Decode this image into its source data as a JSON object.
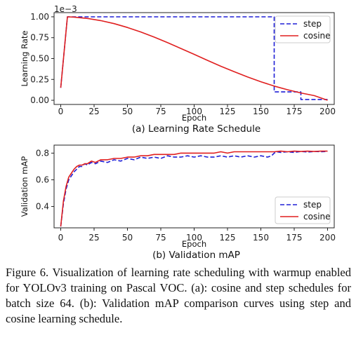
{
  "figure": {
    "caption": "Figure 6. Visualization of learning rate scheduling with warmup enabled for YOLOv3 training on Pascal VOC. (a): cosine and step schedules for batch size 64. (b): Validation mAP comparison curves using step and cosine learning schedule.",
    "colors": {
      "step": "#1f1fd6",
      "cosine": "#e01f1f",
      "axis": "#222222"
    }
  },
  "chart_data": [
    {
      "type": "line",
      "caption": "(a) Learning Rate Schedule",
      "xlabel": "Epoch",
      "ylabel": "Learning Rate",
      "offset_label": "1e−3",
      "xlim": [
        -5,
        205
      ],
      "ylim": [
        -0.05,
        1.05
      ],
      "xticks": [
        "0",
        "25",
        "50",
        "75",
        "100",
        "125",
        "150",
        "175",
        "200"
      ],
      "yticks": [
        "0.00",
        "0.25",
        "0.50",
        "0.75",
        "1.00"
      ],
      "legend_position": "upper-right",
      "series": [
        {
          "name": "step",
          "style": "dashed",
          "x": [
            0,
            5,
            5,
            160,
            160,
            180,
            180,
            200
          ],
          "y": [
            0.15,
            1.0,
            1.0,
            1.0,
            0.1,
            0.1,
            0.01,
            0.01
          ]
        },
        {
          "name": "cosine",
          "style": "solid",
          "x": [
            0,
            5,
            10,
            20,
            30,
            40,
            50,
            60,
            70,
            80,
            90,
            100,
            110,
            120,
            130,
            140,
            150,
            160,
            170,
            180,
            190,
            200
          ],
          "y": [
            0.15,
            1.0,
            0.996,
            0.98,
            0.954,
            0.918,
            0.872,
            0.818,
            0.757,
            0.691,
            0.621,
            0.55,
            0.478,
            0.408,
            0.342,
            0.279,
            0.222,
            0.17,
            0.126,
            0.088,
            0.056,
            0.0
          ]
        }
      ]
    },
    {
      "type": "line",
      "caption": "(b) Validation mAP",
      "xlabel": "Epoch",
      "ylabel": "Validation mAP",
      "xlim": [
        -5,
        205
      ],
      "ylim": [
        0.24,
        0.86
      ],
      "xticks": [
        "0",
        "25",
        "50",
        "75",
        "100",
        "125",
        "150",
        "175",
        "200"
      ],
      "yticks": [
        "0.4",
        "0.6",
        "0.8"
      ],
      "legend_position": "lower-right",
      "series": [
        {
          "name": "step",
          "style": "dashed",
          "x": [
            0,
            2,
            4,
            6,
            8,
            10,
            12,
            14,
            16,
            18,
            20,
            23,
            26,
            30,
            35,
            40,
            45,
            50,
            55,
            60,
            65,
            70,
            75,
            80,
            85,
            90,
            95,
            100,
            105,
            110,
            115,
            120,
            125,
            130,
            135,
            140,
            145,
            150,
            155,
            158,
            160,
            162,
            165,
            170,
            175,
            180,
            185,
            190,
            195,
            200
          ],
          "y": [
            0.25,
            0.42,
            0.53,
            0.6,
            0.63,
            0.66,
            0.68,
            0.7,
            0.7,
            0.72,
            0.71,
            0.73,
            0.72,
            0.74,
            0.73,
            0.75,
            0.74,
            0.76,
            0.75,
            0.77,
            0.76,
            0.77,
            0.76,
            0.78,
            0.77,
            0.77,
            0.78,
            0.77,
            0.78,
            0.77,
            0.77,
            0.78,
            0.77,
            0.78,
            0.77,
            0.78,
            0.77,
            0.78,
            0.77,
            0.78,
            0.8,
            0.81,
            0.805,
            0.81,
            0.805,
            0.812,
            0.808,
            0.812,
            0.81,
            0.812
          ]
        },
        {
          "name": "cosine",
          "style": "solid",
          "x": [
            0,
            2,
            4,
            6,
            8,
            10,
            12,
            14,
            16,
            18,
            20,
            23,
            26,
            30,
            35,
            40,
            45,
            50,
            55,
            60,
            65,
            70,
            75,
            80,
            85,
            90,
            95,
            100,
            105,
            110,
            115,
            120,
            125,
            130,
            135,
            140,
            145,
            150,
            155,
            160,
            165,
            170,
            175,
            180,
            185,
            190,
            195,
            200
          ],
          "y": [
            0.25,
            0.44,
            0.55,
            0.62,
            0.65,
            0.68,
            0.7,
            0.71,
            0.71,
            0.72,
            0.72,
            0.74,
            0.73,
            0.75,
            0.75,
            0.76,
            0.76,
            0.77,
            0.77,
            0.78,
            0.78,
            0.79,
            0.79,
            0.79,
            0.79,
            0.8,
            0.8,
            0.8,
            0.8,
            0.8,
            0.8,
            0.81,
            0.8,
            0.81,
            0.81,
            0.81,
            0.81,
            0.81,
            0.81,
            0.81,
            0.815,
            0.81,
            0.815,
            0.812,
            0.815,
            0.812,
            0.815,
            0.815
          ]
        }
      ]
    }
  ]
}
